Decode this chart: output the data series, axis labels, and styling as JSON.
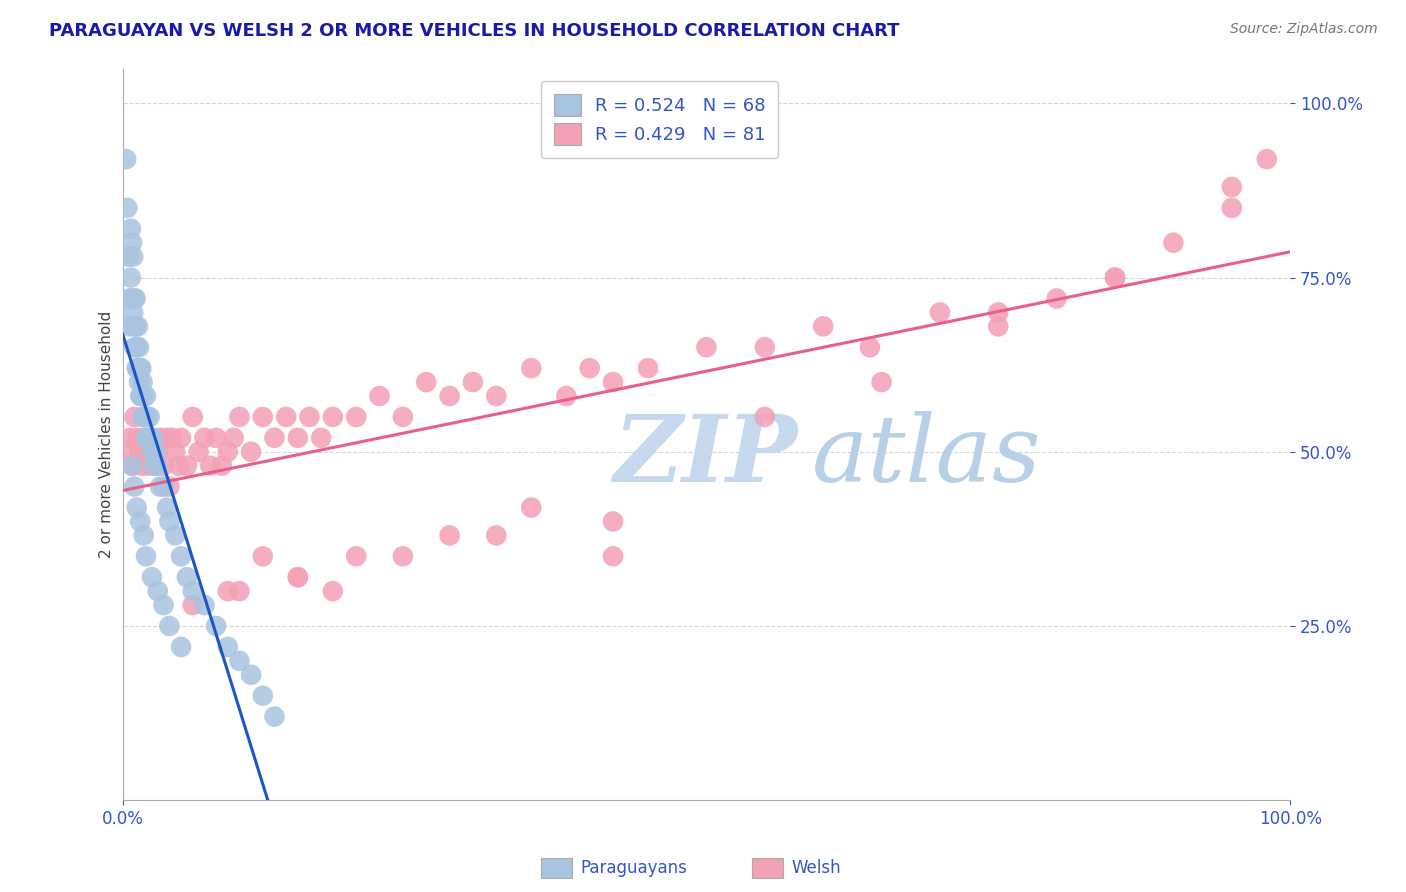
{
  "title": "PARAGUAYAN VS WELSH 2 OR MORE VEHICLES IN HOUSEHOLD CORRELATION CHART",
  "source": "Source: ZipAtlas.com",
  "ylabel": "2 or more Vehicles in Household",
  "xlim": [
    0.0,
    1.0
  ],
  "ylim": [
    0.0,
    1.05
  ],
  "yticks": [
    0.25,
    0.5,
    0.75,
    1.0
  ],
  "ytick_labels": [
    "25.0%",
    "50.0%",
    "75.0%",
    "100.0%"
  ],
  "xticks": [
    0.0,
    1.0
  ],
  "xtick_labels": [
    "0.0%",
    "100.0%"
  ],
  "r_paraguayan": 0.524,
  "n_paraguayan": 68,
  "r_welsh": 0.429,
  "n_welsh": 81,
  "color_paraguayan": "#a8c4e0",
  "color_welsh": "#f4a0b5",
  "line_color_paraguayan": "#1a56c4",
  "line_color_welsh": "#e8608a",
  "legend_label_paraguayan": "Paraguayans",
  "legend_label_welsh": "Welsh",
  "watermark_zip": "ZIP",
  "watermark_atlas": "atlas",
  "watermark_color_zip": "#c5d8ee",
  "watermark_color_atlas": "#b8cfe8",
  "background_color": "#ffffff",
  "grid_color": "#cccccc",
  "title_color": "#1a1aaa",
  "tick_color": "#3355cc",
  "source_color": "#777777",
  "paraguayan_x": [
    0.003,
    0.004,
    0.005,
    0.006,
    0.006,
    0.007,
    0.007,
    0.008,
    0.008,
    0.009,
    0.009,
    0.01,
    0.01,
    0.01,
    0.011,
    0.011,
    0.012,
    0.012,
    0.013,
    0.013,
    0.014,
    0.014,
    0.015,
    0.015,
    0.016,
    0.016,
    0.017,
    0.017,
    0.018,
    0.018,
    0.019,
    0.02,
    0.02,
    0.021,
    0.022,
    0.023,
    0.024,
    0.025,
    0.026,
    0.027,
    0.028,
    0.03,
    0.032,
    0.035,
    0.038,
    0.04,
    0.045,
    0.05,
    0.055,
    0.06,
    0.07,
    0.08,
    0.09,
    0.1,
    0.11,
    0.12,
    0.13,
    0.008,
    0.01,
    0.012,
    0.015,
    0.018,
    0.02,
    0.025,
    0.03,
    0.035,
    0.04,
    0.05
  ],
  "paraguayan_y": [
    0.92,
    0.85,
    0.78,
    0.72,
    0.68,
    0.82,
    0.75,
    0.8,
    0.72,
    0.78,
    0.7,
    0.72,
    0.68,
    0.65,
    0.72,
    0.68,
    0.65,
    0.62,
    0.68,
    0.62,
    0.65,
    0.6,
    0.62,
    0.58,
    0.62,
    0.58,
    0.6,
    0.55,
    0.58,
    0.55,
    0.55,
    0.58,
    0.52,
    0.55,
    0.52,
    0.55,
    0.52,
    0.5,
    0.52,
    0.48,
    0.5,
    0.48,
    0.45,
    0.45,
    0.42,
    0.4,
    0.38,
    0.35,
    0.32,
    0.3,
    0.28,
    0.25,
    0.22,
    0.2,
    0.18,
    0.15,
    0.12,
    0.48,
    0.45,
    0.42,
    0.4,
    0.38,
    0.35,
    0.32,
    0.3,
    0.28,
    0.25,
    0.22
  ],
  "welsh_x": [
    0.004,
    0.006,
    0.008,
    0.01,
    0.012,
    0.014,
    0.016,
    0.018,
    0.02,
    0.022,
    0.025,
    0.028,
    0.03,
    0.032,
    0.035,
    0.038,
    0.04,
    0.042,
    0.045,
    0.048,
    0.05,
    0.055,
    0.06,
    0.065,
    0.07,
    0.075,
    0.08,
    0.085,
    0.09,
    0.095,
    0.1,
    0.11,
    0.12,
    0.13,
    0.14,
    0.15,
    0.16,
    0.17,
    0.18,
    0.2,
    0.22,
    0.24,
    0.26,
    0.28,
    0.3,
    0.32,
    0.35,
    0.38,
    0.4,
    0.42,
    0.45,
    0.5,
    0.55,
    0.6,
    0.64,
    0.7,
    0.75,
    0.8,
    0.85,
    0.9,
    0.95,
    0.98,
    0.1,
    0.15,
    0.2,
    0.28,
    0.35,
    0.42,
    0.55,
    0.65,
    0.75,
    0.85,
    0.95,
    0.06,
    0.09,
    0.12,
    0.15,
    0.18,
    0.24,
    0.32,
    0.42
  ],
  "welsh_y": [
    0.5,
    0.52,
    0.48,
    0.55,
    0.52,
    0.5,
    0.48,
    0.52,
    0.5,
    0.48,
    0.52,
    0.48,
    0.5,
    0.52,
    0.48,
    0.52,
    0.45,
    0.52,
    0.5,
    0.48,
    0.52,
    0.48,
    0.55,
    0.5,
    0.52,
    0.48,
    0.52,
    0.48,
    0.5,
    0.52,
    0.55,
    0.5,
    0.55,
    0.52,
    0.55,
    0.52,
    0.55,
    0.52,
    0.55,
    0.55,
    0.58,
    0.55,
    0.6,
    0.58,
    0.6,
    0.58,
    0.62,
    0.58,
    0.62,
    0.6,
    0.62,
    0.65,
    0.65,
    0.68,
    0.65,
    0.7,
    0.7,
    0.72,
    0.75,
    0.8,
    0.85,
    0.92,
    0.3,
    0.32,
    0.35,
    0.38,
    0.42,
    0.35,
    0.55,
    0.6,
    0.68,
    0.75,
    0.88,
    0.28,
    0.3,
    0.35,
    0.32,
    0.3,
    0.35,
    0.38,
    0.4
  ]
}
